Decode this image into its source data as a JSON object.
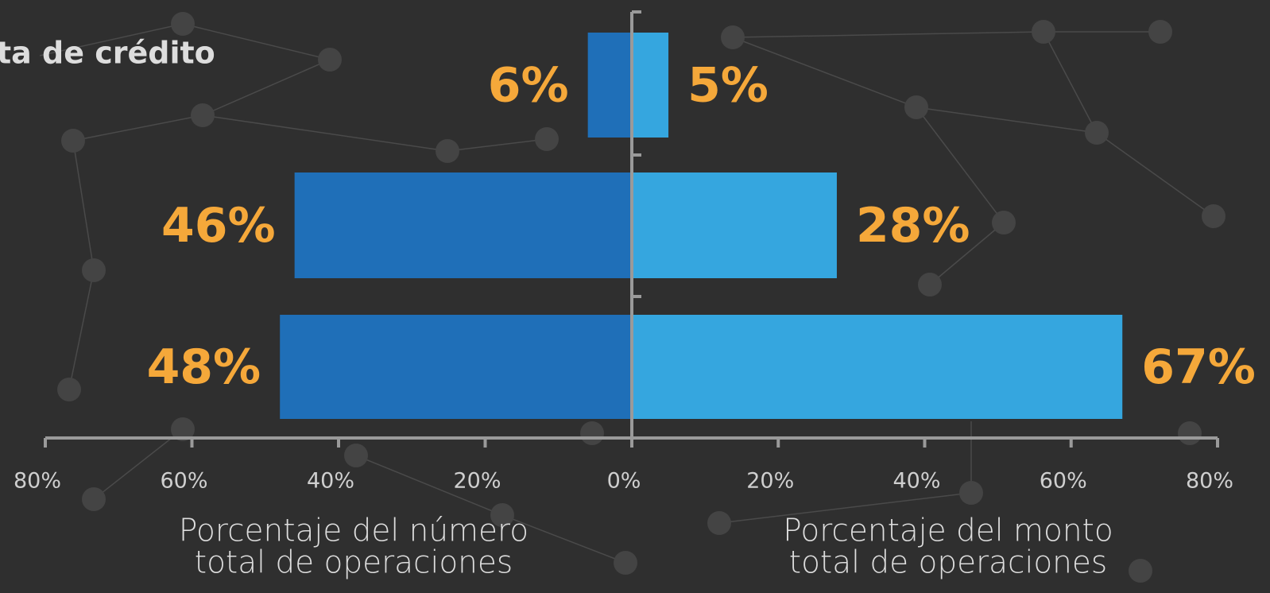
{
  "chart_data": {
    "type": "butterfly",
    "categories": [
      "ta de crédito",
      null,
      null
    ],
    "series": [
      {
        "side": "left",
        "color": "#1f6fb8",
        "values": [
          6,
          46,
          48
        ],
        "value_labels": [
          "6%",
          "46%",
          "48%"
        ]
      },
      {
        "side": "right",
        "color": "#35a6df",
        "values": [
          5,
          28,
          67
        ],
        "value_labels": [
          "5%",
          "28%",
          "67%"
        ]
      }
    ],
    "x_left": {
      "xlim": [
        0,
        80
      ],
      "xticks": [
        {
          "value": 80,
          "label": "80%"
        },
        {
          "value": 60,
          "label": "60%"
        },
        {
          "value": 40,
          "label": "40%"
        },
        {
          "value": 20,
          "label": "20%"
        },
        {
          "value": 0,
          "label": "0%"
        }
      ],
      "xlabel": [
        "Porcentaje del número",
        "total de operaciones"
      ]
    },
    "x_right": {
      "xlim": [
        0,
        80
      ],
      "xticks": [
        {
          "value": 20,
          "label": "20%"
        },
        {
          "value": 40,
          "label": "40%"
        },
        {
          "value": 60,
          "label": "60%"
        },
        {
          "value": 80,
          "label": "80%"
        }
      ],
      "xlabel": [
        "Porcentaje del monto",
        "total de operaciones"
      ]
    },
    "label_color": "#f5a83a"
  }
}
